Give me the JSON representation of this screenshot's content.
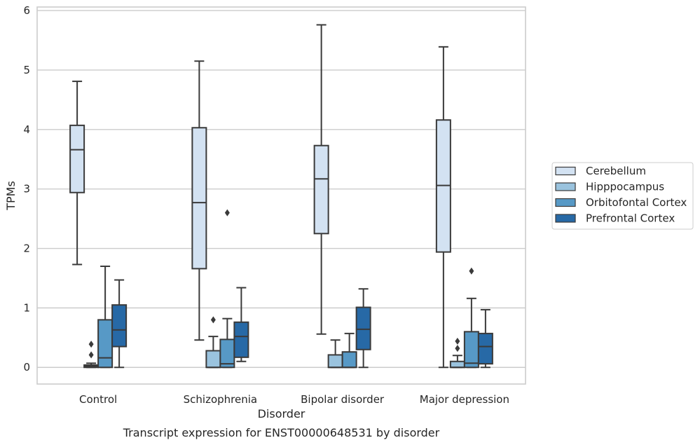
{
  "chart_data": {
    "type": "box",
    "title": "",
    "caption": "Transcript expression for ENST00000648531 by disorder",
    "xlabel": "Disorder",
    "ylabel": "TPMs",
    "ylim": [
      -0.28,
      6.06
    ],
    "yticks": [
      0,
      1,
      2,
      3,
      4,
      5,
      6
    ],
    "grid": true,
    "legend_position": "right",
    "categories": [
      "Control",
      "Schizophrenia",
      "Bipolar disorder",
      "Major depression"
    ],
    "series": [
      {
        "name": "Cerebellum",
        "color": "#d3e2f2",
        "boxes": [
          {
            "whisker_low": 1.73,
            "q1": 2.94,
            "median": 3.66,
            "q3": 4.07,
            "whisker_high": 4.81,
            "outliers": []
          },
          {
            "whisker_low": 0.46,
            "q1": 1.66,
            "median": 2.77,
            "q3": 4.03,
            "whisker_high": 5.15,
            "outliers": []
          },
          {
            "whisker_low": 0.56,
            "q1": 2.25,
            "median": 3.17,
            "q3": 3.73,
            "whisker_high": 5.76,
            "outliers": []
          },
          {
            "whisker_low": 0.0,
            "q1": 1.94,
            "median": 3.06,
            "q3": 4.16,
            "whisker_high": 5.39,
            "outliers": []
          }
        ]
      },
      {
        "name": "Hipppocampus",
        "color": "#9ac3de",
        "boxes": [
          {
            "whisker_low": 0.0,
            "q1": 0.0,
            "median": 0.02,
            "q3": 0.04,
            "whisker_high": 0.07,
            "outliers": [
              0.21,
              0.39
            ]
          },
          {
            "whisker_low": 0.0,
            "q1": 0.0,
            "median": 0.0,
            "q3": 0.28,
            "whisker_high": 0.52,
            "outliers": [
              0.8
            ]
          },
          {
            "whisker_low": 0.0,
            "q1": 0.0,
            "median": 0.0,
            "q3": 0.21,
            "whisker_high": 0.46,
            "outliers": []
          },
          {
            "whisker_low": 0.0,
            "q1": 0.0,
            "median": 0.0,
            "q3": 0.1,
            "whisker_high": 0.2,
            "outliers": [
              0.32,
              0.44
            ]
          }
        ]
      },
      {
        "name": "Orbitofontal Cortex",
        "color": "#5799c6",
        "boxes": [
          {
            "whisker_low": 0.0,
            "q1": 0.0,
            "median": 0.16,
            "q3": 0.8,
            "whisker_high": 1.7,
            "outliers": []
          },
          {
            "whisker_low": 0.0,
            "q1": 0.0,
            "median": 0.06,
            "q3": 0.47,
            "whisker_high": 0.82,
            "outliers": [
              2.6
            ]
          },
          {
            "whisker_low": 0.0,
            "q1": 0.0,
            "median": 0.0,
            "q3": 0.26,
            "whisker_high": 0.57,
            "outliers": []
          },
          {
            "whisker_low": 0.0,
            "q1": 0.0,
            "median": 0.07,
            "q3": 0.6,
            "whisker_high": 1.16,
            "outliers": [
              1.62
            ]
          }
        ]
      },
      {
        "name": "Prefrontal Cortex",
        "color": "#2769a6",
        "boxes": [
          {
            "whisker_low": 0.0,
            "q1": 0.35,
            "median": 0.63,
            "q3": 1.05,
            "whisker_high": 1.47,
            "outliers": []
          },
          {
            "whisker_low": 0.1,
            "q1": 0.17,
            "median": 0.52,
            "q3": 0.76,
            "whisker_high": 1.34,
            "outliers": []
          },
          {
            "whisker_low": 0.0,
            "q1": 0.3,
            "median": 0.64,
            "q3": 1.01,
            "whisker_high": 1.32,
            "outliers": []
          },
          {
            "whisker_low": 0.0,
            "q1": 0.06,
            "median": 0.35,
            "q3": 0.57,
            "whisker_high": 0.97,
            "outliers": []
          }
        ]
      }
    ]
  }
}
